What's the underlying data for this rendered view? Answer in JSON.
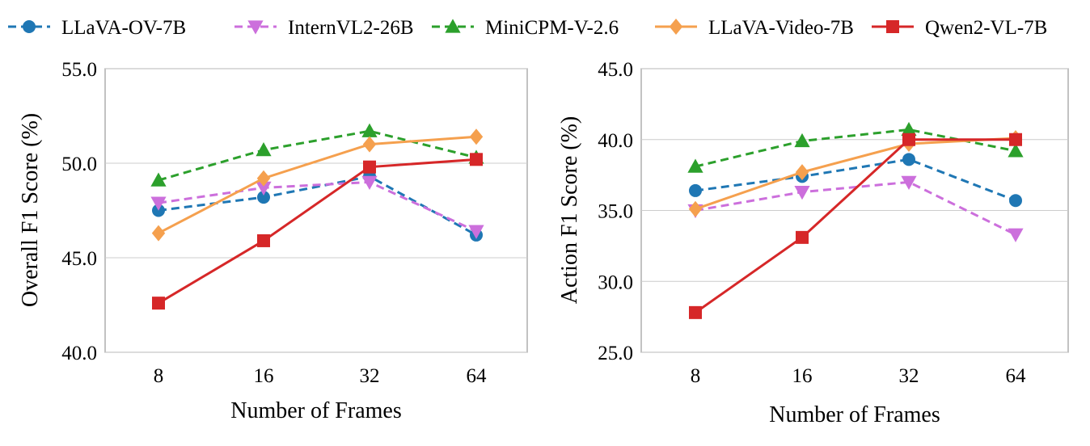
{
  "chart_data": [
    {
      "type": "line",
      "categories": [
        "8",
        "16",
        "32",
        "64"
      ],
      "xlabel": "Number of Frames",
      "ylabel": "Overall F1 Score (%)",
      "ylim": [
        40,
        55
      ],
      "yticks": [
        "40.0",
        "45.0",
        "50.0",
        "55.0"
      ],
      "grid": true,
      "series": [
        {
          "name": "LLaVA-OV-7B",
          "values": [
            47.5,
            48.2,
            49.3,
            46.2
          ]
        },
        {
          "name": "InternVL2-26B",
          "values": [
            47.9,
            48.7,
            49.0,
            46.4
          ]
        },
        {
          "name": "MiniCPM-V-2.6",
          "values": [
            49.1,
            50.7,
            51.7,
            50.3
          ]
        },
        {
          "name": "LLaVA-Video-7B",
          "values": [
            46.3,
            49.2,
            51.0,
            51.4
          ]
        },
        {
          "name": "Qwen2-VL-7B",
          "values": [
            42.6,
            45.9,
            49.8,
            50.2
          ]
        }
      ]
    },
    {
      "type": "line",
      "categories": [
        "8",
        "16",
        "32",
        "64"
      ],
      "xlabel": "Number of Frames",
      "ylabel": "Action F1 Score (%)",
      "ylim": [
        25,
        45
      ],
      "yticks": [
        "25.0",
        "30.0",
        "35.0",
        "40.0",
        "45.0"
      ],
      "grid": true,
      "series": [
        {
          "name": "LLaVA-OV-7B",
          "values": [
            36.4,
            37.4,
            38.6,
            35.7
          ]
        },
        {
          "name": "InternVL2-26B",
          "values": [
            35.0,
            36.3,
            37.0,
            33.3
          ]
        },
        {
          "name": "MiniCPM-V-2.6",
          "values": [
            38.1,
            39.9,
            40.7,
            39.2
          ]
        },
        {
          "name": "LLaVA-Video-7B",
          "values": [
            35.1,
            37.7,
            39.7,
            40.1
          ]
        },
        {
          "name": "Qwen2-VL-7B",
          "values": [
            27.8,
            33.1,
            40.0,
            40.0
          ]
        }
      ]
    }
  ],
  "legend": {
    "placement": "top",
    "entries": [
      {
        "name": "LLaVA-OV-7B",
        "color": "#1f77b4",
        "marker": "circle",
        "dash": true
      },
      {
        "name": "InternVL2-26B",
        "color": "#cc6fdc",
        "marker": "triangle-down",
        "dash": true
      },
      {
        "name": "MiniCPM-V-2.6",
        "color": "#2ca02c",
        "marker": "triangle-up",
        "dash": true
      },
      {
        "name": "LLaVA-Video-7B",
        "color": "#f5a04e",
        "marker": "diamond",
        "dash": false
      },
      {
        "name": "Qwen2-VL-7B",
        "color": "#d62728",
        "marker": "square",
        "dash": false
      }
    ]
  }
}
